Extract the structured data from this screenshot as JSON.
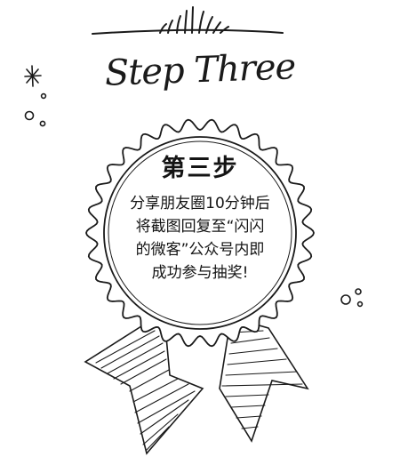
{
  "title": "Step Three",
  "badge": {
    "heading": "第三步",
    "lines": [
      "分享朋友圈10分钟后",
      "将截图回复至“闪闪",
      "的微客”公众号内即",
      "成功参与抽奖!"
    ]
  },
  "colors": {
    "ink": "#1a1a1a",
    "background": "#ffffff"
  },
  "icons": [
    "sunburst-icon",
    "sparkle-icon",
    "dots-icon",
    "rosette-icon",
    "ribbon-icon"
  ]
}
